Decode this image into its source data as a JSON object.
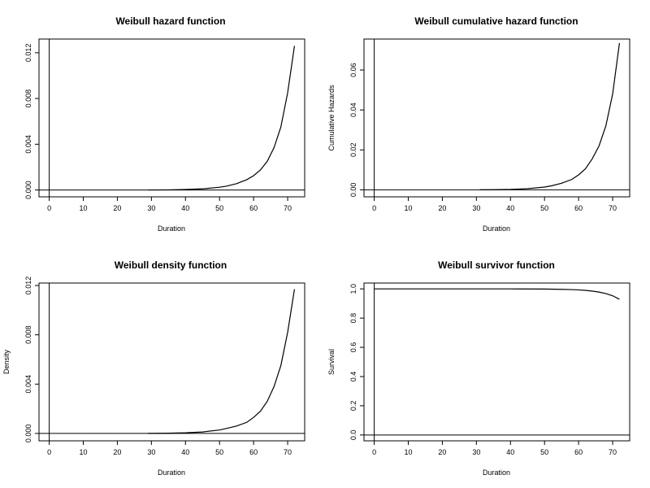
{
  "chart_data": [
    {
      "type": "line",
      "title": "Weibull hazard function",
      "xlabel": "Duration",
      "ylabel": "",
      "xlim": [
        -3,
        75
      ],
      "ylim": [
        -0.0006,
        0.0132
      ],
      "xticks": [
        0,
        10,
        20,
        30,
        40,
        50,
        60,
        70
      ],
      "yticks": [
        0.0,
        0.004,
        0.008,
        0.012
      ],
      "ytick_labels": [
        "0.000",
        "0.004",
        "0.008",
        "0.012"
      ],
      "hline": 0,
      "vline": 0,
      "series": [
        {
          "x": [
            29,
            35,
            40,
            45,
            50,
            52,
            55,
            58,
            60,
            62,
            64,
            66,
            68,
            70,
            72
          ],
          "y": [
            0,
            1e-05,
            4e-05,
            0.0001,
            0.00024,
            0.00033,
            0.00055,
            0.0009,
            0.00125,
            0.00175,
            0.0025,
            0.0037,
            0.0055,
            0.0085,
            0.0126
          ]
        }
      ]
    },
    {
      "type": "line",
      "title": "Weibull cumulative hazard function",
      "xlabel": "Duration",
      "ylabel": "Cumulative Hazards",
      "xlim": [
        -3,
        75
      ],
      "ylim": [
        -0.0035,
        0.0755
      ],
      "xticks": [
        0,
        10,
        20,
        30,
        40,
        50,
        60,
        70
      ],
      "yticks": [
        0.0,
        0.02,
        0.04,
        0.06
      ],
      "ytick_labels": [
        "0.00",
        "0.02",
        "0.04",
        "0.06"
      ],
      "hline": 0,
      "vline": 0,
      "series": [
        {
          "x": [
            31,
            35,
            40,
            45,
            50,
            52,
            55,
            58,
            60,
            62,
            64,
            66,
            68,
            70,
            72
          ],
          "y": [
            0,
            5e-05,
            0.0002,
            0.0006,
            0.0014,
            0.002,
            0.0033,
            0.0052,
            0.0075,
            0.0105,
            0.0155,
            0.022,
            0.032,
            0.048,
            0.0735
          ]
        }
      ]
    },
    {
      "type": "line",
      "title": "Weibull density function",
      "xlabel": "Duration",
      "ylabel": "Density",
      "xlim": [
        -3,
        75
      ],
      "ylim": [
        -0.0006,
        0.0122
      ],
      "xticks": [
        0,
        10,
        20,
        30,
        40,
        50,
        60,
        70
      ],
      "yticks": [
        0.0,
        0.004,
        0.008,
        0.012
      ],
      "ytick_labels": [
        "0.000",
        "0.004",
        "0.008",
        "0.012"
      ],
      "hline": 0,
      "vline": 0,
      "series": [
        {
          "x": [
            29,
            35,
            40,
            45,
            50,
            52,
            55,
            58,
            60,
            62,
            64,
            66,
            68,
            70,
            72
          ],
          "y": [
            0,
            2e-05,
            5e-05,
            0.00012,
            0.00028,
            0.0004,
            0.0006,
            0.0009,
            0.0013,
            0.0018,
            0.0026,
            0.0038,
            0.0055,
            0.0082,
            0.0117
          ]
        }
      ]
    },
    {
      "type": "line",
      "title": "Weibull survivor function",
      "xlabel": "Duration",
      "ylabel": "Survival",
      "xlim": [
        -3,
        75
      ],
      "ylim": [
        -0.04,
        1.04
      ],
      "xticks": [
        0,
        10,
        20,
        30,
        40,
        50,
        60,
        70
      ],
      "yticks": [
        0.0,
        0.2,
        0.4,
        0.6,
        0.8,
        1.0
      ],
      "ytick_labels": [
        "0.0",
        "0.2",
        "0.4",
        "0.6",
        "0.8",
        "1.0"
      ],
      "hline": 0,
      "vline": 0,
      "series": [
        {
          "x": [
            0,
            40,
            50,
            55,
            58,
            60,
            62,
            64,
            66,
            68,
            70,
            72
          ],
          "y": [
            1.0,
            1.0,
            0.999,
            0.997,
            0.995,
            0.993,
            0.99,
            0.985,
            0.978,
            0.968,
            0.953,
            0.929
          ]
        }
      ]
    }
  ]
}
